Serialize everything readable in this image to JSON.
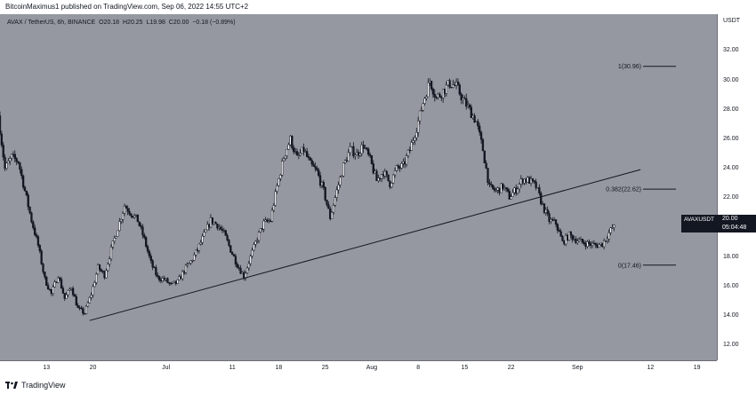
{
  "header": {
    "publisher_text": "BitcoinMaximus1 published on TradingView.com, Sep 06, 2022 14:55 UTC+2"
  },
  "legend": {
    "symbol": "AVAX / TetherUS, 6h, BINANCE",
    "o_label": "O",
    "o_value": "20.18",
    "h_label": "H",
    "h_value": "20.25",
    "l_label": "L",
    "l_value": "19.98",
    "c_label": "C",
    "c_value": "20.00",
    "change": "−0.18 (−0.89%)"
  },
  "price_label": {
    "symbol": "AVAXUSDT",
    "price": "20.00",
    "countdown": "05:04:48"
  },
  "footer": {
    "brand": "TradingView"
  },
  "chart_data": {
    "type": "candlestick",
    "exchange": "BINANCE",
    "symbol": "AVAX / TetherUS",
    "timeframe": "6h",
    "y_unit": "USDT",
    "ylim": [
      11,
      34.5
    ],
    "y_ticks": [
      "12.00",
      "14.00",
      "16.00",
      "18.00",
      "20.00",
      "22.00",
      "24.00",
      "26.00",
      "28.00",
      "30.00",
      "32.00"
    ],
    "x_ticks": [
      "13",
      "20",
      "Jul",
      "11",
      "18",
      "25",
      "Aug",
      "8",
      "15",
      "22",
      "Sep",
      "12",
      "19"
    ],
    "x_domain": [
      "2022-06-06",
      "2022-09-22"
    ],
    "grid": false,
    "price_path": [
      [
        "2022-06-06T00:00",
        27.6
      ],
      [
        "2022-06-07T00:00",
        24.0
      ],
      [
        "2022-06-08T00:00",
        24.8
      ],
      [
        "2022-06-09T00:00",
        24.5
      ],
      [
        "2022-06-10T00:00",
        22.5
      ],
      [
        "2022-06-11T00:00",
        20.5
      ],
      [
        "2022-06-12T00:00",
        18.8
      ],
      [
        "2022-06-13T00:00",
        16.5
      ],
      [
        "2022-06-14T00:00",
        15.5
      ],
      [
        "2022-06-15T00:00",
        16.8
      ],
      [
        "2022-06-16T00:00",
        15.2
      ],
      [
        "2022-06-17T00:00",
        16.0
      ],
      [
        "2022-06-18T00:00",
        14.5
      ],
      [
        "2022-06-19T00:00",
        14.2
      ],
      [
        "2022-06-20T00:00",
        15.5
      ],
      [
        "2022-06-21T00:00",
        17.3
      ],
      [
        "2022-06-22T00:00",
        16.8
      ],
      [
        "2022-06-23T00:00",
        18.5
      ],
      [
        "2022-06-24T00:00",
        20.0
      ],
      [
        "2022-06-25T00:00",
        21.5
      ],
      [
        "2022-06-26T00:00",
        21.0
      ],
      [
        "2022-06-27T00:00",
        20.5
      ],
      [
        "2022-06-28T00:00",
        19.2
      ],
      [
        "2022-06-29T00:00",
        17.6
      ],
      [
        "2022-06-30T00:00",
        16.6
      ],
      [
        "2022-07-01T00:00",
        16.5
      ],
      [
        "2022-07-02T00:00",
        16.1
      ],
      [
        "2022-07-03T00:00",
        16.3
      ],
      [
        "2022-07-04T00:00",
        17.1
      ],
      [
        "2022-07-05T00:00",
        17.7
      ],
      [
        "2022-07-06T00:00",
        18.5
      ],
      [
        "2022-07-07T00:00",
        19.5
      ],
      [
        "2022-07-08T00:00",
        20.5
      ],
      [
        "2022-07-09T00:00",
        20.2
      ],
      [
        "2022-07-10T00:00",
        19.6
      ],
      [
        "2022-07-11T00:00",
        18.5
      ],
      [
        "2022-07-12T00:00",
        17.5
      ],
      [
        "2022-07-13T00:00",
        16.7
      ],
      [
        "2022-07-14T00:00",
        18.0
      ],
      [
        "2022-07-15T00:00",
        19.3
      ],
      [
        "2022-07-16T00:00",
        20.3
      ],
      [
        "2022-07-17T00:00",
        20.5
      ],
      [
        "2022-07-18T00:00",
        22.8
      ],
      [
        "2022-07-19T00:00",
        24.8
      ],
      [
        "2022-07-20T00:00",
        26.0
      ],
      [
        "2022-07-21T00:00",
        24.7
      ],
      [
        "2022-07-22T00:00",
        25.3
      ],
      [
        "2022-07-23T00:00",
        24.3
      ],
      [
        "2022-07-24T00:00",
        23.8
      ],
      [
        "2022-07-25T00:00",
        22.5
      ],
      [
        "2022-07-26T00:00",
        20.7
      ],
      [
        "2022-07-27T00:00",
        22.5
      ],
      [
        "2022-07-28T00:00",
        24.2
      ],
      [
        "2022-07-29T00:00",
        25.3
      ],
      [
        "2022-07-30T00:00",
        25.0
      ],
      [
        "2022-07-31T00:00",
        25.6
      ],
      [
        "2022-08-01T00:00",
        24.6
      ],
      [
        "2022-08-02T00:00",
        23.2
      ],
      [
        "2022-08-03T00:00",
        23.8
      ],
      [
        "2022-08-04T00:00",
        23.0
      ],
      [
        "2022-08-05T00:00",
        24.0
      ],
      [
        "2022-08-06T00:00",
        24.2
      ],
      [
        "2022-08-07T00:00",
        25.3
      ],
      [
        "2022-08-08T00:00",
        26.8
      ],
      [
        "2022-08-09T00:00",
        28.5
      ],
      [
        "2022-08-10T00:00",
        30.0
      ],
      [
        "2022-08-11T00:00",
        28.8
      ],
      [
        "2022-08-12T00:00",
        29.3
      ],
      [
        "2022-08-13T00:00",
        29.8
      ],
      [
        "2022-08-14T00:00",
        29.6
      ],
      [
        "2022-08-15T00:00",
        28.7
      ],
      [
        "2022-08-16T00:00",
        28.0
      ],
      [
        "2022-08-17T00:00",
        27.2
      ],
      [
        "2022-08-18T00:00",
        25.3
      ],
      [
        "2022-08-19T00:00",
        22.7
      ],
      [
        "2022-08-20T00:00",
        22.5
      ],
      [
        "2022-08-21T00:00",
        22.8
      ],
      [
        "2022-08-22T00:00",
        22.1
      ],
      [
        "2022-08-23T00:00",
        22.6
      ],
      [
        "2022-08-24T00:00",
        23.3
      ],
      [
        "2022-08-25T00:00",
        23.2
      ],
      [
        "2022-08-26T00:00",
        22.8
      ],
      [
        "2022-08-27T00:00",
        21.5
      ],
      [
        "2022-08-28T00:00",
        20.5
      ],
      [
        "2022-08-29T00:00",
        20.3
      ],
      [
        "2022-08-30T00:00",
        19.0
      ],
      [
        "2022-08-31T00:00",
        19.5
      ],
      [
        "2022-09-01T00:00",
        19.2
      ],
      [
        "2022-09-02T00:00",
        19.0
      ],
      [
        "2022-09-03T00:00",
        18.9
      ],
      [
        "2022-09-04T00:00",
        18.8
      ],
      [
        "2022-09-05T00:00",
        18.9
      ],
      [
        "2022-09-06T12:00",
        20.0
      ]
    ],
    "annotations": {
      "trendline": {
        "start": [
          "2022-06-19T12:00",
          13.7
        ],
        "end": [
          "2022-09-10T12:00",
          23.95
        ]
      },
      "fibonacci": [
        {
          "label": "1(30.96)",
          "level": 30.96
        },
        {
          "label": "0.382(22.62)",
          "level": 22.62
        },
        {
          "label": "0(17.46)",
          "level": 17.46
        }
      ],
      "last_price": 20.0
    }
  }
}
